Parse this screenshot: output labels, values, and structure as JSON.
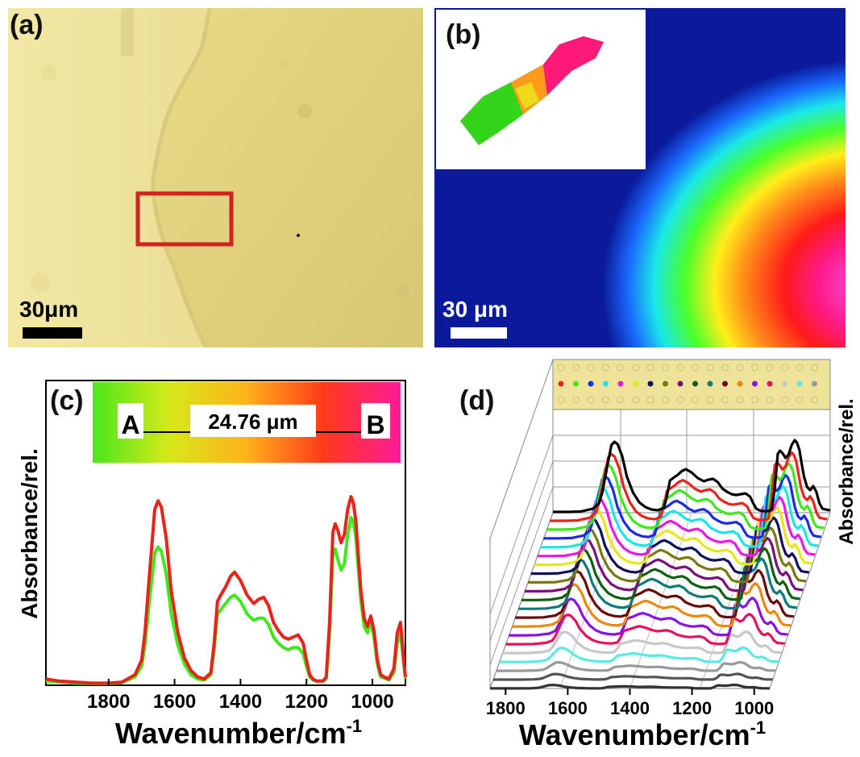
{
  "panels": {
    "a": {
      "label": "(a)",
      "scale": "30μm"
    },
    "b": {
      "label": "(b)",
      "scale": "30 μm"
    },
    "c": {
      "label": "(c)"
    },
    "d": {
      "label": "(d)"
    }
  },
  "colors": {
    "micrograph_bg": "#efe39a",
    "roi_box": "#d42020",
    "map_base": "#0a1a9a",
    "series_red": "#e8231a",
    "series_green": "#3ee81a"
  },
  "chart_data": [
    {
      "panel": "c",
      "type": "line",
      "xlabel": "Wavenumber/cm",
      "xlabel_sup": "-1",
      "ylabel": "Absorbance/rel.",
      "xlim": [
        1990,
        900
      ],
      "x_reversed": true,
      "ylim": [
        0,
        1
      ],
      "ticks": [
        1800,
        1600,
        1400,
        1200,
        1000
      ],
      "tick_labels": [
        "1800",
        "1600",
        "1400",
        "1200",
        "1000"
      ],
      "inset": {
        "start": "A",
        "end": "B",
        "distance": "24.76 μm"
      },
      "series": [
        {
          "color": "#e8231a",
          "x": [
            1990,
            1950,
            1900,
            1850,
            1800,
            1760,
            1720,
            1700,
            1690,
            1675,
            1660,
            1650,
            1640,
            1625,
            1610,
            1590,
            1570,
            1550,
            1530,
            1510,
            1490,
            1480,
            1470,
            1460,
            1445,
            1430,
            1418,
            1400,
            1380,
            1360,
            1345,
            1330,
            1315,
            1300,
            1285,
            1270,
            1255,
            1240,
            1225,
            1210,
            1200,
            1190,
            1180,
            1170,
            1160,
            1150,
            1140,
            1130,
            1120,
            1113,
            1105,
            1095,
            1085,
            1075,
            1065,
            1058,
            1050,
            1042,
            1035,
            1025,
            1015,
            1005,
            995,
            985,
            975,
            965,
            950,
            935,
            925,
            915,
            905,
            900
          ],
          "y": [
            0.03,
            0.02,
            0.015,
            0.01,
            0.01,
            0.015,
            0.05,
            0.12,
            0.25,
            0.55,
            0.84,
            0.88,
            0.85,
            0.7,
            0.45,
            0.25,
            0.13,
            0.07,
            0.04,
            0.03,
            0.06,
            0.2,
            0.4,
            0.43,
            0.47,
            0.52,
            0.54,
            0.5,
            0.43,
            0.39,
            0.41,
            0.42,
            0.38,
            0.3,
            0.26,
            0.23,
            0.22,
            0.23,
            0.24,
            0.2,
            0.12,
            0.05,
            0.03,
            0.02,
            0.02,
            0.02,
            0.04,
            0.3,
            0.73,
            0.77,
            0.74,
            0.68,
            0.72,
            0.84,
            0.9,
            0.87,
            0.78,
            0.6,
            0.45,
            0.32,
            0.28,
            0.33,
            0.26,
            0.12,
            0.05,
            0.04,
            0.03,
            0.08,
            0.25,
            0.3,
            0.12,
            0.04
          ]
        },
        {
          "color": "#3ee81a",
          "x": [
            1990,
            1950,
            1900,
            1850,
            1800,
            1760,
            1720,
            1700,
            1690,
            1675,
            1660,
            1650,
            1640,
            1625,
            1610,
            1590,
            1570,
            1550,
            1530,
            1510,
            1490,
            1480,
            1470,
            1460,
            1445,
            1430,
            1418,
            1400,
            1380,
            1360,
            1345,
            1330,
            1315,
            1300,
            1285,
            1270,
            1255,
            1240,
            1225,
            1210,
            1200,
            1190,
            1180,
            1170,
            1160,
            1150,
            1140,
            1130,
            1120,
            1113,
            1105,
            1095,
            1085,
            1075,
            1065,
            1058,
            1050,
            1042,
            1035,
            1025,
            1015,
            1005,
            995,
            985,
            975,
            965,
            950,
            935,
            925,
            915,
            905,
            900
          ],
          "y": [
            0.02,
            0.015,
            0.01,
            0.008,
            0.008,
            0.012,
            0.04,
            0.09,
            0.19,
            0.42,
            0.63,
            0.66,
            0.64,
            0.53,
            0.34,
            0.19,
            0.1,
            0.05,
            0.03,
            0.025,
            0.05,
            0.17,
            0.34,
            0.36,
            0.39,
            0.42,
            0.43,
            0.4,
            0.34,
            0.31,
            0.32,
            0.32,
            0.29,
            0.23,
            0.2,
            0.18,
            0.17,
            0.18,
            0.18,
            0.15,
            0.09,
            0.04,
            0.025,
            0.02,
            0.02,
            0.02,
            0.03,
            0.25,
            0.62,
            0.65,
            0.6,
            0.55,
            0.58,
            0.72,
            0.8,
            0.78,
            0.7,
            0.54,
            0.4,
            0.28,
            0.25,
            0.3,
            0.23,
            0.1,
            0.04,
            0.035,
            0.025,
            0.06,
            0.2,
            0.25,
            0.1,
            0.03
          ]
        }
      ]
    },
    {
      "panel": "d",
      "type": "line",
      "xlabel": "Wavenumber/cm",
      "xlabel_sup": "-1",
      "ylabel": "Absorbance/rel.",
      "ticks": [
        1800,
        1600,
        1400,
        1200,
        1000
      ],
      "tick_labels": [
        "1800",
        "1600",
        "1400",
        "1200",
        "1000"
      ],
      "xlim": [
        1850,
        950
      ],
      "x_reversed": true,
      "waterfall_colors": [
        "#000000",
        "#e8231a",
        "#3ee81a",
        "#1a2ae8",
        "#19e6e6",
        "#e619e6",
        "#e6e619",
        "#101060",
        "#7a7a10",
        "#7a107a",
        "#106010",
        "#0f7a7a",
        "#6a0a0a",
        "#e88a10",
        "#8a10e8",
        "#e8105a",
        "#c8c8c8",
        "#5ae8e8",
        "#999999",
        "#555555",
        "#333333"
      ],
      "waterfall_scale": [
        1.0,
        0.95,
        0.92,
        0.88,
        0.85,
        0.82,
        0.8,
        0.78,
        0.76,
        0.74,
        0.72,
        0.7,
        0.66,
        0.6,
        0.52,
        0.42,
        0.3,
        0.2,
        0.12,
        0.08,
        0.05
      ]
    }
  ]
}
